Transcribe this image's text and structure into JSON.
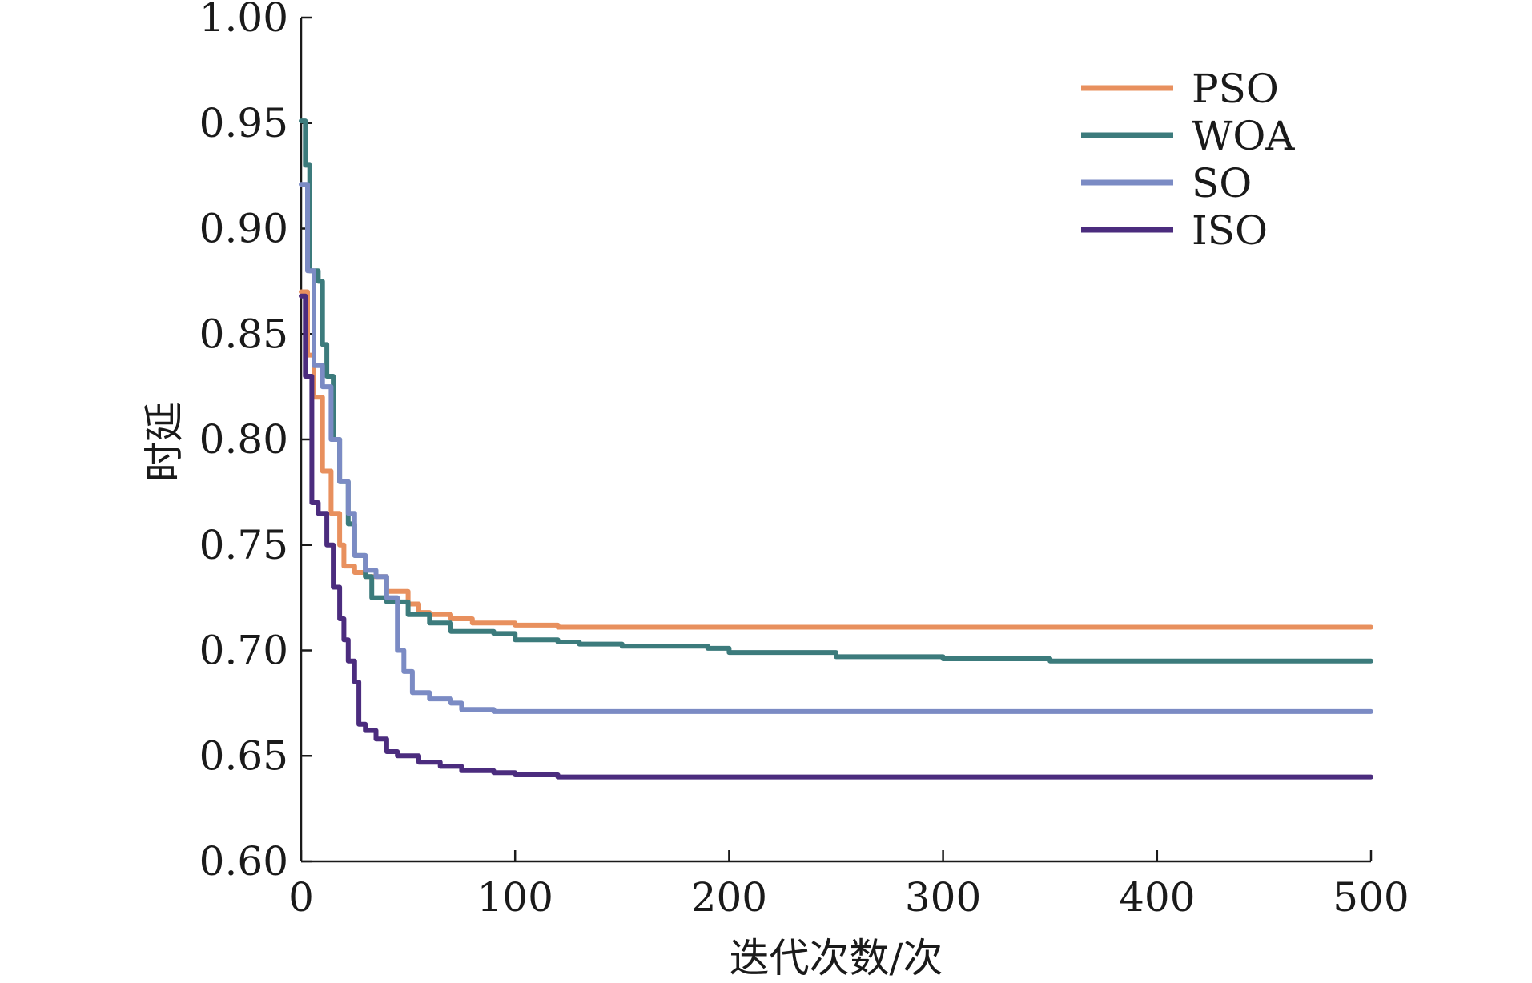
{
  "chart_data": {
    "type": "line",
    "xlabel": "迭代次数/次",
    "ylabel": "时延",
    "xlim": [
      0,
      500
    ],
    "ylim": [
      0.6,
      1.0
    ],
    "xticks": [
      "0",
      "100",
      "200",
      "300",
      "400",
      "500"
    ],
    "yticks": [
      "0.60",
      "0.65",
      "0.70",
      "0.75",
      "0.80",
      "0.85",
      "0.90",
      "0.95",
      "1.00"
    ],
    "grid": false,
    "legend_position": "top-right",
    "series": [
      {
        "name": "PSO",
        "color": "#E8905E",
        "points": [
          [
            0,
            0.87
          ],
          [
            3,
            0.84
          ],
          [
            6,
            0.82
          ],
          [
            10,
            0.785
          ],
          [
            14,
            0.765
          ],
          [
            18,
            0.75
          ],
          [
            20,
            0.74
          ],
          [
            25,
            0.737
          ],
          [
            30,
            0.735
          ],
          [
            40,
            0.728
          ],
          [
            50,
            0.722
          ],
          [
            55,
            0.718
          ],
          [
            60,
            0.717
          ],
          [
            70,
            0.715
          ],
          [
            80,
            0.713
          ],
          [
            100,
            0.712
          ],
          [
            120,
            0.711
          ],
          [
            200,
            0.711
          ],
          [
            300,
            0.711
          ],
          [
            400,
            0.711
          ],
          [
            500,
            0.711
          ]
        ]
      },
      {
        "name": "WOA",
        "color": "#3C7B7C",
        "points": [
          [
            0,
            0.951
          ],
          [
            2,
            0.93
          ],
          [
            4,
            0.88
          ],
          [
            8,
            0.875
          ],
          [
            10,
            0.845
          ],
          [
            12,
            0.83
          ],
          [
            15,
            0.8
          ],
          [
            18,
            0.78
          ],
          [
            22,
            0.76
          ],
          [
            25,
            0.745
          ],
          [
            30,
            0.735
          ],
          [
            33,
            0.725
          ],
          [
            40,
            0.723
          ],
          [
            50,
            0.717
          ],
          [
            60,
            0.713
          ],
          [
            70,
            0.709
          ],
          [
            90,
            0.708
          ],
          [
            100,
            0.705
          ],
          [
            120,
            0.704
          ],
          [
            130,
            0.703
          ],
          [
            150,
            0.702
          ],
          [
            190,
            0.701
          ],
          [
            200,
            0.699
          ],
          [
            250,
            0.697
          ],
          [
            300,
            0.696
          ],
          [
            350,
            0.695
          ],
          [
            400,
            0.695
          ],
          [
            500,
            0.695
          ]
        ]
      },
      {
        "name": "SO",
        "color": "#7B8BC4",
        "points": [
          [
            0,
            0.921
          ],
          [
            3,
            0.88
          ],
          [
            6,
            0.835
          ],
          [
            10,
            0.825
          ],
          [
            14,
            0.8
          ],
          [
            18,
            0.78
          ],
          [
            22,
            0.765
          ],
          [
            25,
            0.745
          ],
          [
            30,
            0.738
          ],
          [
            35,
            0.735
          ],
          [
            40,
            0.725
          ],
          [
            45,
            0.7
          ],
          [
            48,
            0.69
          ],
          [
            52,
            0.68
          ],
          [
            60,
            0.677
          ],
          [
            70,
            0.675
          ],
          [
            75,
            0.672
          ],
          [
            90,
            0.671
          ],
          [
            100,
            0.671
          ],
          [
            200,
            0.671
          ],
          [
            300,
            0.671
          ],
          [
            400,
            0.671
          ],
          [
            500,
            0.671
          ]
        ]
      },
      {
        "name": "ISO",
        "color": "#4B2C7E",
        "points": [
          [
            0,
            0.868
          ],
          [
            2,
            0.83
          ],
          [
            5,
            0.77
          ],
          [
            8,
            0.765
          ],
          [
            12,
            0.75
          ],
          [
            15,
            0.73
          ],
          [
            18,
            0.715
          ],
          [
            20,
            0.705
          ],
          [
            22,
            0.695
          ],
          [
            25,
            0.685
          ],
          [
            27,
            0.665
          ],
          [
            30,
            0.662
          ],
          [
            35,
            0.658
          ],
          [
            40,
            0.652
          ],
          [
            45,
            0.65
          ],
          [
            55,
            0.647
          ],
          [
            65,
            0.645
          ],
          [
            75,
            0.643
          ],
          [
            90,
            0.642
          ],
          [
            100,
            0.641
          ],
          [
            120,
            0.64
          ],
          [
            200,
            0.64
          ],
          [
            300,
            0.64
          ],
          [
            400,
            0.64
          ],
          [
            500,
            0.64
          ]
        ]
      }
    ]
  }
}
